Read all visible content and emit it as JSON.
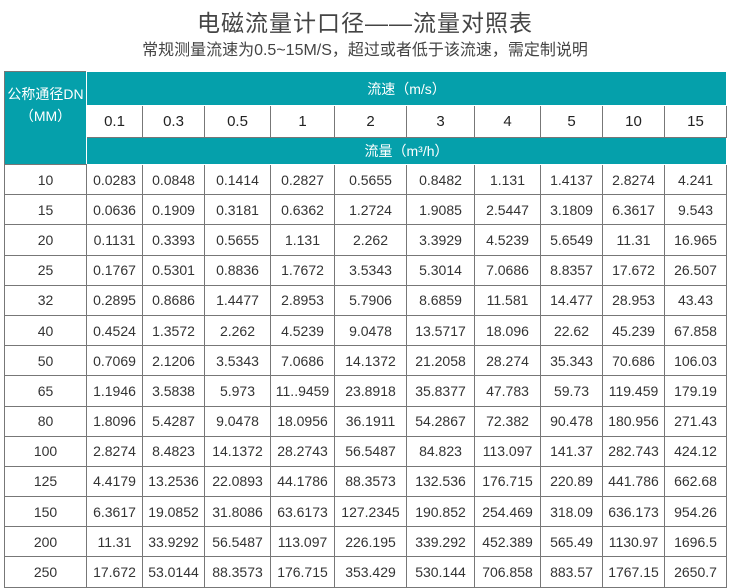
{
  "title": "电磁流量计口径——流量对照表",
  "subtitle": "常规测量流速为0.5~15M/S，超过或者低于该流速，需定制说明",
  "colors": {
    "header_bg": "#05a0ab",
    "header_text": "#ffffff"
  },
  "table": {
    "dn_header_line1": "公称通径DN",
    "dn_header_line2": "（MM）",
    "velocity_header": "流速（m/s）",
    "flow_header": "流量（m³/h）",
    "velocities": [
      "0.1",
      "0.3",
      "0.5",
      "1",
      "2",
      "3",
      "4",
      "5",
      "10",
      "15"
    ],
    "rows": [
      {
        "dn": "10",
        "values": [
          "0.0283",
          "0.0848",
          "0.1414",
          "0.2827",
          "0.5655",
          "0.8482",
          "1.131",
          "1.4137",
          "2.8274",
          "4.241"
        ]
      },
      {
        "dn": "15",
        "values": [
          "0.0636",
          "0.1909",
          "0.3181",
          "0.6362",
          "1.2724",
          "1.9085",
          "2.5447",
          "3.1809",
          "6.3617",
          "9.543"
        ]
      },
      {
        "dn": "20",
        "values": [
          "0.1131",
          "0.3393",
          "0.5655",
          "1.131",
          "2.262",
          "3.3929",
          "4.5239",
          "5.6549",
          "11.31",
          "16.965"
        ]
      },
      {
        "dn": "25",
        "values": [
          "0.1767",
          "0.5301",
          "0.8836",
          "1.7672",
          "3.5343",
          "5.3014",
          "7.0686",
          "8.8357",
          "17.672",
          "26.507"
        ]
      },
      {
        "dn": "32",
        "values": [
          "0.2895",
          "0.8686",
          "1.4477",
          "2.8953",
          "5.7906",
          "8.6859",
          "11.581",
          "14.477",
          "28.953",
          "43.43"
        ]
      },
      {
        "dn": "40",
        "values": [
          "0.4524",
          "1.3572",
          "2.262",
          "4.5239",
          "9.0478",
          "13.5717",
          "18.096",
          "22.62",
          "45.239",
          "67.858"
        ]
      },
      {
        "dn": "50",
        "values": [
          "0.7069",
          "2.1206",
          "3.5343",
          "7.0686",
          "14.1372",
          "21.2058",
          "28.274",
          "35.343",
          "70.686",
          "106.03"
        ]
      },
      {
        "dn": "65",
        "values": [
          "1.1946",
          "3.5838",
          "5.973",
          "11..9459",
          "23.8918",
          "35.8377",
          "47.783",
          "59.73",
          "119.459",
          "179.19"
        ]
      },
      {
        "dn": "80",
        "values": [
          "1.8096",
          "5.4287",
          "9.0478",
          "18.0956",
          "36.1911",
          "54.2867",
          "72.382",
          "90.478",
          "180.956",
          "271.43"
        ]
      },
      {
        "dn": "100",
        "values": [
          "2.8274",
          "8.4823",
          "14.1372",
          "28.2743",
          "56.5487",
          "84.823",
          "113.097",
          "141.37",
          "282.743",
          "424.12"
        ]
      },
      {
        "dn": "125",
        "values": [
          "4.4179",
          "13.2536",
          "22.0893",
          "44.1786",
          "88.3573",
          "132.536",
          "176.715",
          "220.89",
          "441.786",
          "662.68"
        ]
      },
      {
        "dn": "150",
        "values": [
          "6.3617",
          "19.0852",
          "31.8086",
          "63.6173",
          "127.2345",
          "190.852",
          "254.469",
          "318.09",
          "636.173",
          "954.26"
        ]
      },
      {
        "dn": "200",
        "values": [
          "11.31",
          "33.9292",
          "56.5487",
          "113.097",
          "226.195",
          "339.292",
          "452.389",
          "565.49",
          "1130.97",
          "1696.5"
        ]
      },
      {
        "dn": "250",
        "values": [
          "17.672",
          "53.0144",
          "88.3573",
          "176.715",
          "353.429",
          "530.144",
          "706.858",
          "883.57",
          "1767.15",
          "2650.7"
        ]
      }
    ]
  }
}
